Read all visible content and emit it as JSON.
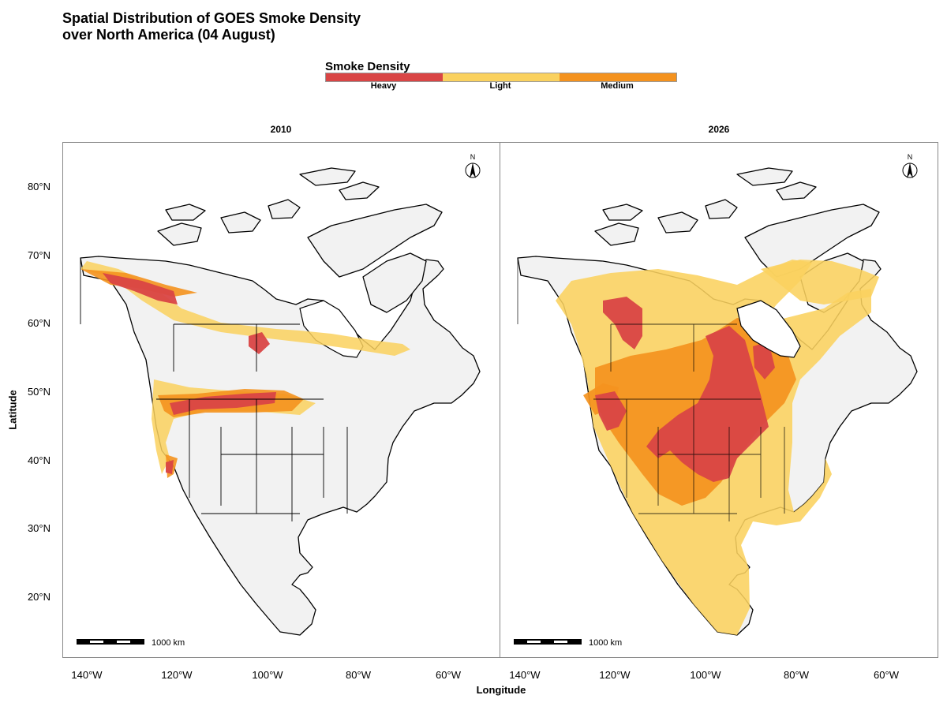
{
  "title_line1": "Spatial Distribution of GOES Smoke Density",
  "title_line2": "over North America (04 August)",
  "legend": {
    "title": "Smoke Density",
    "items": [
      {
        "label": "Heavy",
        "color": "#d94545"
      },
      {
        "label": "Light",
        "color": "#fad15e"
      },
      {
        "label": "Medium",
        "color": "#f4921e"
      }
    ]
  },
  "panels": [
    {
      "title": "2010",
      "scale_label": "1000 km",
      "north_label": "N"
    },
    {
      "title": "2026",
      "scale_label": "1000 km",
      "north_label": "N"
    }
  ],
  "axes": {
    "ylabel": "Latitude",
    "xlabel": "Longitude",
    "yticks": [
      "80°N",
      "70°N",
      "60°N",
      "50°N",
      "40°N",
      "30°N",
      "20°N"
    ],
    "xticks": [
      "140°W",
      "120°W",
      "100°W",
      "80°W",
      "60°W"
    ]
  },
  "colors": {
    "land": "#f2f2f2",
    "border": "#000000"
  }
}
